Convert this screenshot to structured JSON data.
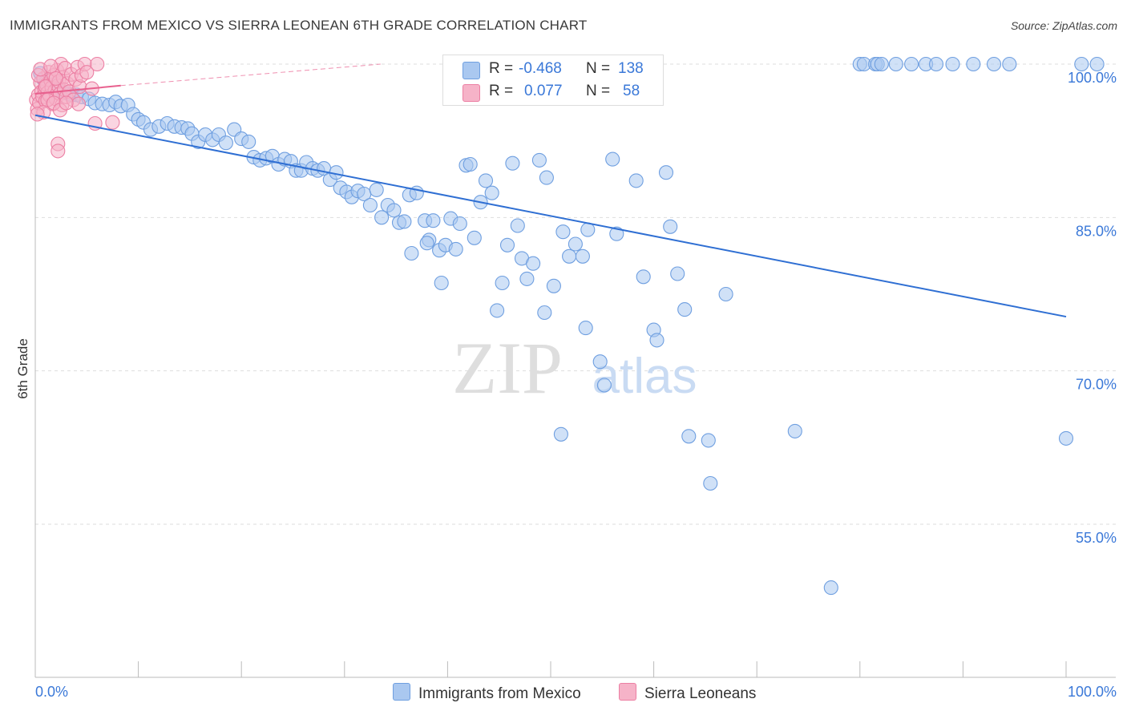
{
  "title": "IMMIGRANTS FROM MEXICO VS SIERRA LEONEAN 6TH GRADE CORRELATION CHART",
  "source": "Source: ZipAtlas.com",
  "watermark": {
    "zip": "ZIP",
    "atlas": "atlas"
  },
  "colors": {
    "blue_fill": "#aac8f0",
    "blue_stroke": "#6f9fe0",
    "blue_line": "#2f6fd3",
    "pink_fill": "#f6b3c8",
    "pink_stroke": "#ec7fa3",
    "pink_line": "#e8608e",
    "axis_text": "#3a78d8",
    "grid": "#dddddd"
  },
  "legend": {
    "rows": [
      {
        "r_label": "R =",
        "r_value": "-0.468",
        "n_label": "N =",
        "n_value": "138",
        "series": "blue"
      },
      {
        "r_label": "R =",
        "r_value": "0.077",
        "n_label": "N =",
        "n_value": "58",
        "series": "pink"
      }
    ]
  },
  "bottom_legend": [
    {
      "label": "Immigrants from Mexico",
      "series": "blue"
    },
    {
      "label": "Sierra Leoneans",
      "series": "pink"
    }
  ],
  "chart_data": {
    "type": "scatter",
    "title": "IMMIGRANTS FROM MEXICO VS SIERRA LEONEAN 6TH GRADE CORRELATION CHART",
    "xlabel": "",
    "ylabel": "6th Grade",
    "xlim": [
      0,
      100
    ],
    "ylim": [
      40,
      101.5
    ],
    "x_tick_labels": [
      "0.0%",
      "100.0%"
    ],
    "y_ticks": [
      {
        "value": 100,
        "label": "100.0%"
      },
      {
        "value": 85,
        "label": "85.0%"
      },
      {
        "value": 70,
        "label": "70.0%"
      },
      {
        "value": 55,
        "label": "55.0%"
      }
    ],
    "series": [
      {
        "name": "Immigrants from Mexico",
        "color": "blue",
        "R": -0.468,
        "N": 138,
        "trend": {
          "x": [
            0,
            100
          ],
          "y": [
            95.0,
            75.3
          ]
        },
        "points": [
          [
            0.5,
            99.1
          ],
          [
            0.8,
            98.5
          ],
          [
            1.0,
            98.2
          ],
          [
            1.2,
            97.8
          ],
          [
            1.5,
            98.0
          ],
          [
            2.0,
            97.5
          ],
          [
            2.3,
            97.4
          ],
          [
            2.8,
            97.2
          ],
          [
            3.2,
            97.1
          ],
          [
            3.5,
            97.0
          ],
          [
            4.0,
            97.0
          ],
          [
            4.5,
            96.8
          ],
          [
            5.2,
            96.6
          ],
          [
            5.8,
            96.2
          ],
          [
            6.5,
            96.1
          ],
          [
            7.2,
            96.0
          ],
          [
            7.8,
            96.3
          ],
          [
            8.3,
            95.9
          ],
          [
            9.0,
            96.0
          ],
          [
            9.5,
            95.1
          ],
          [
            10.0,
            94.6
          ],
          [
            10.5,
            94.3
          ],
          [
            11.2,
            93.6
          ],
          [
            12.0,
            93.9
          ],
          [
            12.8,
            94.2
          ],
          [
            13.5,
            93.9
          ],
          [
            14.2,
            93.8
          ],
          [
            14.8,
            93.7
          ],
          [
            15.2,
            93.2
          ],
          [
            15.8,
            92.4
          ],
          [
            16.5,
            93.1
          ],
          [
            17.2,
            92.6
          ],
          [
            17.8,
            93.1
          ],
          [
            18.5,
            92.3
          ],
          [
            19.3,
            93.6
          ],
          [
            20.0,
            92.7
          ],
          [
            20.7,
            92.4
          ],
          [
            21.2,
            90.9
          ],
          [
            21.8,
            90.6
          ],
          [
            22.4,
            90.8
          ],
          [
            23.0,
            91.0
          ],
          [
            23.6,
            90.2
          ],
          [
            24.2,
            90.7
          ],
          [
            24.8,
            90.5
          ],
          [
            25.3,
            89.6
          ],
          [
            25.8,
            89.6
          ],
          [
            26.3,
            90.4
          ],
          [
            26.9,
            89.8
          ],
          [
            27.4,
            89.6
          ],
          [
            28.0,
            89.8
          ],
          [
            28.6,
            88.7
          ],
          [
            29.2,
            89.4
          ],
          [
            29.6,
            87.9
          ],
          [
            30.2,
            87.5
          ],
          [
            30.7,
            87.0
          ],
          [
            31.3,
            87.6
          ],
          [
            31.9,
            87.3
          ],
          [
            32.5,
            86.2
          ],
          [
            33.1,
            87.7
          ],
          [
            33.6,
            85.0
          ],
          [
            34.2,
            86.2
          ],
          [
            34.8,
            85.7
          ],
          [
            35.3,
            84.5
          ],
          [
            35.8,
            84.6
          ],
          [
            36.3,
            87.2
          ],
          [
            37.0,
            87.4
          ],
          [
            36.5,
            81.5
          ],
          [
            37.8,
            84.7
          ],
          [
            38.2,
            82.8
          ],
          [
            38.6,
            84.7
          ],
          [
            38.0,
            82.5
          ],
          [
            39.2,
            81.8
          ],
          [
            39.4,
            78.6
          ],
          [
            39.8,
            82.3
          ],
          [
            40.3,
            84.9
          ],
          [
            40.8,
            81.9
          ],
          [
            41.2,
            84.4
          ],
          [
            41.8,
            90.1
          ],
          [
            42.2,
            90.2
          ],
          [
            42.6,
            83.0
          ],
          [
            43.2,
            86.5
          ],
          [
            43.7,
            88.6
          ],
          [
            44.3,
            87.4
          ],
          [
            44.8,
            75.9
          ],
          [
            45.3,
            78.6
          ],
          [
            45.8,
            82.3
          ],
          [
            46.3,
            90.3
          ],
          [
            46.8,
            84.2
          ],
          [
            47.2,
            81.0
          ],
          [
            47.7,
            79.0
          ],
          [
            48.3,
            80.5
          ],
          [
            48.9,
            90.6
          ],
          [
            49.4,
            75.7
          ],
          [
            49.6,
            88.9
          ],
          [
            50.3,
            78.3
          ],
          [
            51.0,
            63.8
          ],
          [
            51.2,
            83.6
          ],
          [
            51.8,
            81.2
          ],
          [
            52.4,
            82.4
          ],
          [
            53.1,
            81.2
          ],
          [
            53.4,
            74.2
          ],
          [
            53.6,
            83.8
          ],
          [
            54.8,
            70.9
          ],
          [
            55.2,
            68.6
          ],
          [
            56.0,
            90.7
          ],
          [
            56.4,
            83.4
          ],
          [
            58.3,
            88.6
          ],
          [
            59.0,
            79.2
          ],
          [
            60.0,
            74.0
          ],
          [
            60.3,
            73.0
          ],
          [
            61.2,
            89.4
          ],
          [
            61.6,
            84.1
          ],
          [
            62.3,
            79.5
          ],
          [
            63.0,
            76.0
          ],
          [
            63.4,
            63.6
          ],
          [
            65.3,
            63.2
          ],
          [
            65.5,
            59.0
          ],
          [
            67.0,
            77.5
          ],
          [
            73.7,
            64.1
          ],
          [
            77.2,
            48.8
          ],
          [
            80.0,
            100.0
          ],
          [
            80.4,
            100.0
          ],
          [
            81.5,
            100.0
          ],
          [
            81.7,
            100.0
          ],
          [
            82.1,
            100.0
          ],
          [
            83.5,
            100.0
          ],
          [
            85.0,
            100.0
          ],
          [
            86.4,
            100.0
          ],
          [
            87.4,
            100.0
          ],
          [
            89.0,
            100.0
          ],
          [
            91.0,
            100.0
          ],
          [
            93.0,
            100.0
          ],
          [
            94.5,
            100.0
          ],
          [
            100.0,
            63.4
          ],
          [
            101.5,
            100.0
          ],
          [
            103.0,
            100.0
          ]
        ]
      },
      {
        "name": "Sierra Leoneans",
        "color": "pink",
        "R": 0.077,
        "N": 58,
        "trend": {
          "x": [
            0,
            8.3
          ],
          "y": [
            97.1,
            97.9
          ]
        },
        "trend_extension": {
          "x": [
            8.3,
            33.5
          ],
          "y": [
            97.9,
            100.0
          ]
        },
        "points": [
          [
            0.1,
            96.5
          ],
          [
            0.2,
            95.6
          ],
          [
            0.3,
            97.0
          ],
          [
            0.4,
            96.2
          ],
          [
            0.5,
            98.2
          ],
          [
            0.6,
            97.3
          ],
          [
            0.7,
            96.8
          ],
          [
            0.8,
            98.6
          ],
          [
            0.9,
            97.6
          ],
          [
            1.0,
            96.4
          ],
          [
            1.1,
            98.0
          ],
          [
            1.2,
            97.2
          ],
          [
            1.3,
            99.2
          ],
          [
            1.4,
            96.9
          ],
          [
            1.5,
            98.4
          ],
          [
            1.6,
            97.7
          ],
          [
            1.7,
            96.1
          ],
          [
            1.8,
            98.9
          ],
          [
            1.9,
            97.4
          ],
          [
            2.0,
            96.6
          ],
          [
            2.1,
            99.4
          ],
          [
            2.2,
            97.9
          ],
          [
            2.3,
            98.3
          ],
          [
            2.4,
            97.1
          ],
          [
            2.5,
            100.0
          ],
          [
            2.6,
            96.0
          ],
          [
            2.7,
            98.7
          ],
          [
            2.8,
            97.5
          ],
          [
            2.9,
            99.6
          ],
          [
            3.0,
            96.8
          ],
          [
            3.1,
            98.1
          ],
          [
            3.3,
            97.3
          ],
          [
            3.5,
            99.0
          ],
          [
            3.7,
            96.5
          ],
          [
            3.9,
            98.5
          ],
          [
            4.1,
            99.7
          ],
          [
            4.3,
            97.8
          ],
          [
            4.5,
            98.9
          ],
          [
            4.8,
            100.0
          ],
          [
            5.0,
            99.2
          ],
          [
            5.5,
            97.6
          ],
          [
            6.0,
            100.0
          ],
          [
            0.3,
            98.9
          ],
          [
            0.5,
            99.5
          ],
          [
            0.8,
            95.3
          ],
          [
            1.0,
            97.8
          ],
          [
            1.2,
            96.5
          ],
          [
            1.5,
            99.8
          ],
          [
            1.8,
            96.2
          ],
          [
            2.0,
            98.6
          ],
          [
            2.2,
            92.2
          ],
          [
            2.2,
            91.5
          ],
          [
            2.4,
            95.5
          ],
          [
            4.2,
            96.1
          ],
          [
            5.8,
            94.2
          ],
          [
            7.5,
            94.3
          ],
          [
            0.2,
            95.1
          ],
          [
            3.0,
            96.2
          ]
        ]
      }
    ]
  }
}
